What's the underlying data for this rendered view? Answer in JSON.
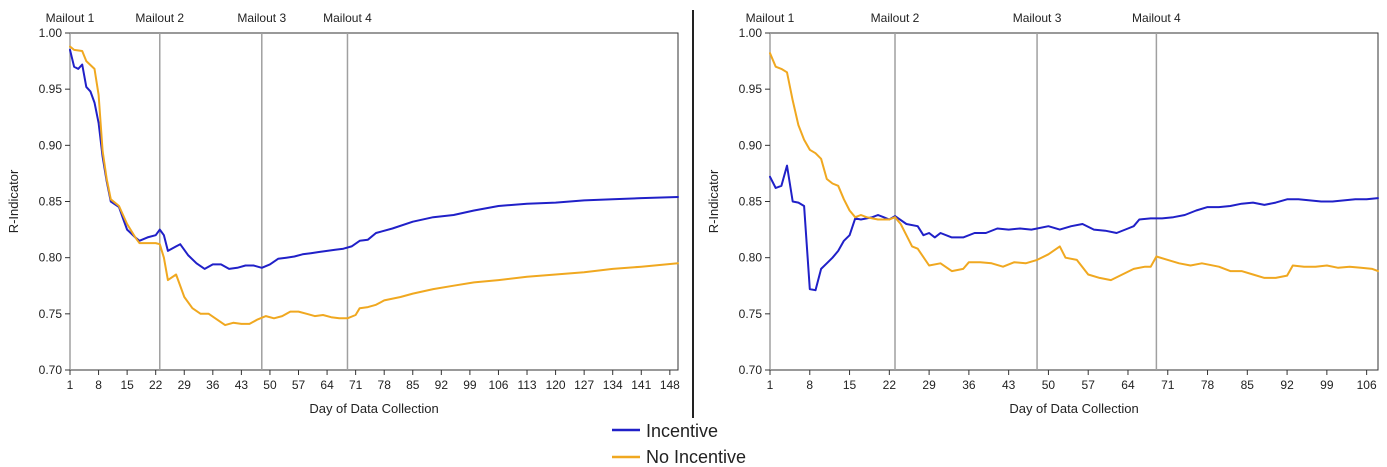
{
  "colors": {
    "incentive": "#2020c8",
    "no_incentive": "#f0a820",
    "ref_line": "#a0a0a0",
    "divider": "#222222"
  },
  "legend": [
    {
      "label": "Incentive",
      "color": "#2020c8"
    },
    {
      "label": "No Incentive",
      "color": "#f0a820"
    }
  ],
  "chart_data": [
    {
      "type": "line",
      "xlabel": "Day of Data Collection",
      "ylabel": "R-Indicator",
      "xlim": [
        1,
        150
      ],
      "ylim": [
        0.7,
        1.0
      ],
      "xticks": [
        1,
        8,
        15,
        22,
        29,
        36,
        43,
        50,
        57,
        64,
        71,
        78,
        85,
        92,
        99,
        106,
        113,
        120,
        127,
        134,
        141,
        148
      ],
      "yticks": [
        0.7,
        0.75,
        0.8,
        0.85,
        0.9,
        0.95,
        1.0
      ],
      "ytick_labels": [
        "0.70",
        "0.75",
        "0.80",
        "0.85",
        "0.90",
        "0.95",
        "1.00"
      ],
      "grid": false,
      "annotations": [
        {
          "label": "Mailout 1",
          "x": 1
        },
        {
          "label": "Mailout 2",
          "x": 23
        },
        {
          "label": "Mailout 3",
          "x": 48
        },
        {
          "label": "Mailout 4",
          "x": 69
        }
      ],
      "series": [
        {
          "name": "Incentive",
          "points": [
            [
              1,
              0.985
            ],
            [
              2,
              0.97
            ],
            [
              3,
              0.968
            ],
            [
              4,
              0.972
            ],
            [
              5,
              0.952
            ],
            [
              6,
              0.948
            ],
            [
              7,
              0.938
            ],
            [
              8,
              0.92
            ],
            [
              9,
              0.89
            ],
            [
              10,
              0.868
            ],
            [
              11,
              0.85
            ],
            [
              13,
              0.845
            ],
            [
              14,
              0.835
            ],
            [
              15,
              0.825
            ],
            [
              17,
              0.818
            ],
            [
              18,
              0.815
            ],
            [
              20,
              0.818
            ],
            [
              22,
              0.82
            ],
            [
              23,
              0.825
            ],
            [
              24,
              0.82
            ],
            [
              25,
              0.806
            ],
            [
              27,
              0.81
            ],
            [
              28,
              0.812
            ],
            [
              30,
              0.802
            ],
            [
              32,
              0.795
            ],
            [
              34,
              0.79
            ],
            [
              36,
              0.794
            ],
            [
              38,
              0.794
            ],
            [
              40,
              0.79
            ],
            [
              42,
              0.791
            ],
            [
              44,
              0.793
            ],
            [
              46,
              0.793
            ],
            [
              48,
              0.791
            ],
            [
              50,
              0.794
            ],
            [
              52,
              0.799
            ],
            [
              54,
              0.8
            ],
            [
              56,
              0.801
            ],
            [
              58,
              0.803
            ],
            [
              60,
              0.804
            ],
            [
              62,
              0.805
            ],
            [
              64,
              0.806
            ],
            [
              66,
              0.807
            ],
            [
              68,
              0.808
            ],
            [
              70,
              0.81
            ],
            [
              72,
              0.815
            ],
            [
              74,
              0.816
            ],
            [
              76,
              0.822
            ],
            [
              80,
              0.826
            ],
            [
              85,
              0.832
            ],
            [
              90,
              0.836
            ],
            [
              95,
              0.838
            ],
            [
              100,
              0.842
            ],
            [
              106,
              0.846
            ],
            [
              113,
              0.848
            ],
            [
              120,
              0.849
            ],
            [
              127,
              0.851
            ],
            [
              134,
              0.852
            ],
            [
              141,
              0.853
            ],
            [
              150,
              0.854
            ]
          ]
        },
        {
          "name": "No Incentive",
          "points": [
            [
              1,
              0.988
            ],
            [
              2,
              0.985
            ],
            [
              4,
              0.984
            ],
            [
              5,
              0.975
            ],
            [
              7,
              0.968
            ],
            [
              8,
              0.945
            ],
            [
              9,
              0.895
            ],
            [
              10,
              0.87
            ],
            [
              11,
              0.852
            ],
            [
              13,
              0.846
            ],
            [
              15,
              0.83
            ],
            [
              17,
              0.818
            ],
            [
              18,
              0.813
            ],
            [
              20,
              0.813
            ],
            [
              22,
              0.813
            ],
            [
              23,
              0.812
            ],
            [
              24,
              0.8
            ],
            [
              25,
              0.78
            ],
            [
              27,
              0.785
            ],
            [
              29,
              0.765
            ],
            [
              31,
              0.755
            ],
            [
              33,
              0.75
            ],
            [
              35,
              0.75
            ],
            [
              37,
              0.745
            ],
            [
              39,
              0.74
            ],
            [
              41,
              0.742
            ],
            [
              43,
              0.741
            ],
            [
              45,
              0.741
            ],
            [
              47,
              0.745
            ],
            [
              49,
              0.748
            ],
            [
              51,
              0.746
            ],
            [
              53,
              0.748
            ],
            [
              55,
              0.752
            ],
            [
              57,
              0.752
            ],
            [
              59,
              0.75
            ],
            [
              61,
              0.748
            ],
            [
              63,
              0.749
            ],
            [
              65,
              0.747
            ],
            [
              67,
              0.746
            ],
            [
              69,
              0.746
            ],
            [
              71,
              0.749
            ],
            [
              72,
              0.755
            ],
            [
              74,
              0.756
            ],
            [
              76,
              0.758
            ],
            [
              78,
              0.762
            ],
            [
              82,
              0.765
            ],
            [
              85,
              0.768
            ],
            [
              90,
              0.772
            ],
            [
              95,
              0.775
            ],
            [
              100,
              0.778
            ],
            [
              106,
              0.78
            ],
            [
              113,
              0.783
            ],
            [
              120,
              0.785
            ],
            [
              127,
              0.787
            ],
            [
              134,
              0.79
            ],
            [
              141,
              0.792
            ],
            [
              150,
              0.795
            ]
          ]
        }
      ]
    },
    {
      "type": "line",
      "xlabel": "Day of Data Collection",
      "ylabel": "R-Indicator",
      "xlim": [
        1,
        108
      ],
      "ylim": [
        0.7,
        1.0
      ],
      "xticks": [
        1,
        8,
        15,
        22,
        29,
        36,
        43,
        50,
        57,
        64,
        71,
        78,
        85,
        92,
        99,
        106
      ],
      "yticks": [
        0.7,
        0.75,
        0.8,
        0.85,
        0.9,
        0.95,
        1.0
      ],
      "ytick_labels": [
        "0.70",
        "0.75",
        "0.80",
        "0.85",
        "0.90",
        "0.95",
        "1.00"
      ],
      "grid": false,
      "annotations": [
        {
          "label": "Mailout 1",
          "x": 1
        },
        {
          "label": "Mailout 2",
          "x": 23
        },
        {
          "label": "Mailout 3",
          "x": 48
        },
        {
          "label": "Mailout 4",
          "x": 69
        }
      ],
      "series": [
        {
          "name": "Incentive",
          "points": [
            [
              1,
              0.872
            ],
            [
              2,
              0.862
            ],
            [
              3,
              0.864
            ],
            [
              4,
              0.882
            ],
            [
              5,
              0.85
            ],
            [
              6,
              0.849
            ],
            [
              7,
              0.846
            ],
            [
              8,
              0.772
            ],
            [
              9,
              0.771
            ],
            [
              10,
              0.79
            ],
            [
              11,
              0.795
            ],
            [
              12,
              0.8
            ],
            [
              13,
              0.806
            ],
            [
              14,
              0.815
            ],
            [
              15,
              0.82
            ],
            [
              16,
              0.835
            ],
            [
              17,
              0.834
            ],
            [
              18,
              0.835
            ],
            [
              19,
              0.836
            ],
            [
              20,
              0.838
            ],
            [
              21,
              0.836
            ],
            [
              22,
              0.834
            ],
            [
              23,
              0.837
            ],
            [
              25,
              0.83
            ],
            [
              27,
              0.828
            ],
            [
              28,
              0.82
            ],
            [
              29,
              0.822
            ],
            [
              30,
              0.818
            ],
            [
              31,
              0.822
            ],
            [
              33,
              0.818
            ],
            [
              35,
              0.818
            ],
            [
              37,
              0.822
            ],
            [
              39,
              0.822
            ],
            [
              41,
              0.826
            ],
            [
              43,
              0.825
            ],
            [
              45,
              0.826
            ],
            [
              47,
              0.825
            ],
            [
              48,
              0.826
            ],
            [
              50,
              0.828
            ],
            [
              52,
              0.825
            ],
            [
              54,
              0.828
            ],
            [
              56,
              0.83
            ],
            [
              58,
              0.825
            ],
            [
              60,
              0.824
            ],
            [
              62,
              0.822
            ],
            [
              64,
              0.826
            ],
            [
              65,
              0.828
            ],
            [
              66,
              0.834
            ],
            [
              68,
              0.835
            ],
            [
              70,
              0.835
            ],
            [
              72,
              0.836
            ],
            [
              74,
              0.838
            ],
            [
              76,
              0.842
            ],
            [
              78,
              0.845
            ],
            [
              80,
              0.845
            ],
            [
              82,
              0.846
            ],
            [
              84,
              0.848
            ],
            [
              86,
              0.849
            ],
            [
              88,
              0.847
            ],
            [
              90,
              0.849
            ],
            [
              92,
              0.852
            ],
            [
              94,
              0.852
            ],
            [
              96,
              0.851
            ],
            [
              98,
              0.85
            ],
            [
              100,
              0.85
            ],
            [
              102,
              0.851
            ],
            [
              104,
              0.852
            ],
            [
              106,
              0.852
            ],
            [
              108,
              0.853
            ]
          ]
        },
        {
          "name": "No Incentive",
          "points": [
            [
              1,
              0.982
            ],
            [
              2,
              0.97
            ],
            [
              3,
              0.968
            ],
            [
              4,
              0.965
            ],
            [
              5,
              0.94
            ],
            [
              6,
              0.918
            ],
            [
              7,
              0.905
            ],
            [
              8,
              0.896
            ],
            [
              9,
              0.893
            ],
            [
              10,
              0.888
            ],
            [
              11,
              0.87
            ],
            [
              12,
              0.866
            ],
            [
              13,
              0.864
            ],
            [
              14,
              0.852
            ],
            [
              15,
              0.842
            ],
            [
              16,
              0.836
            ],
            [
              17,
              0.838
            ],
            [
              18,
              0.836
            ],
            [
              19,
              0.835
            ],
            [
              20,
              0.834
            ],
            [
              22,
              0.834
            ],
            [
              23,
              0.836
            ],
            [
              24,
              0.83
            ],
            [
              25,
              0.82
            ],
            [
              26,
              0.81
            ],
            [
              27,
              0.808
            ],
            [
              29,
              0.793
            ],
            [
              31,
              0.795
            ],
            [
              33,
              0.788
            ],
            [
              35,
              0.79
            ],
            [
              36,
              0.796
            ],
            [
              38,
              0.796
            ],
            [
              40,
              0.795
            ],
            [
              42,
              0.792
            ],
            [
              44,
              0.796
            ],
            [
              46,
              0.795
            ],
            [
              48,
              0.798
            ],
            [
              50,
              0.803
            ],
            [
              52,
              0.81
            ],
            [
              53,
              0.8
            ],
            [
              55,
              0.798
            ],
            [
              57,
              0.785
            ],
            [
              59,
              0.782
            ],
            [
              61,
              0.78
            ],
            [
              63,
              0.785
            ],
            [
              65,
              0.79
            ],
            [
              67,
              0.792
            ],
            [
              68,
              0.792
            ],
            [
              69,
              0.801
            ],
            [
              71,
              0.798
            ],
            [
              73,
              0.795
            ],
            [
              75,
              0.793
            ],
            [
              77,
              0.795
            ],
            [
              80,
              0.792
            ],
            [
              82,
              0.788
            ],
            [
              84,
              0.788
            ],
            [
              86,
              0.785
            ],
            [
              88,
              0.782
            ],
            [
              90,
              0.782
            ],
            [
              92,
              0.784
            ],
            [
              93,
              0.793
            ],
            [
              95,
              0.792
            ],
            [
              97,
              0.792
            ],
            [
              99,
              0.793
            ],
            [
              101,
              0.791
            ],
            [
              103,
              0.792
            ],
            [
              105,
              0.791
            ],
            [
              107,
              0.79
            ],
            [
              108,
              0.788
            ]
          ]
        }
      ]
    }
  ]
}
